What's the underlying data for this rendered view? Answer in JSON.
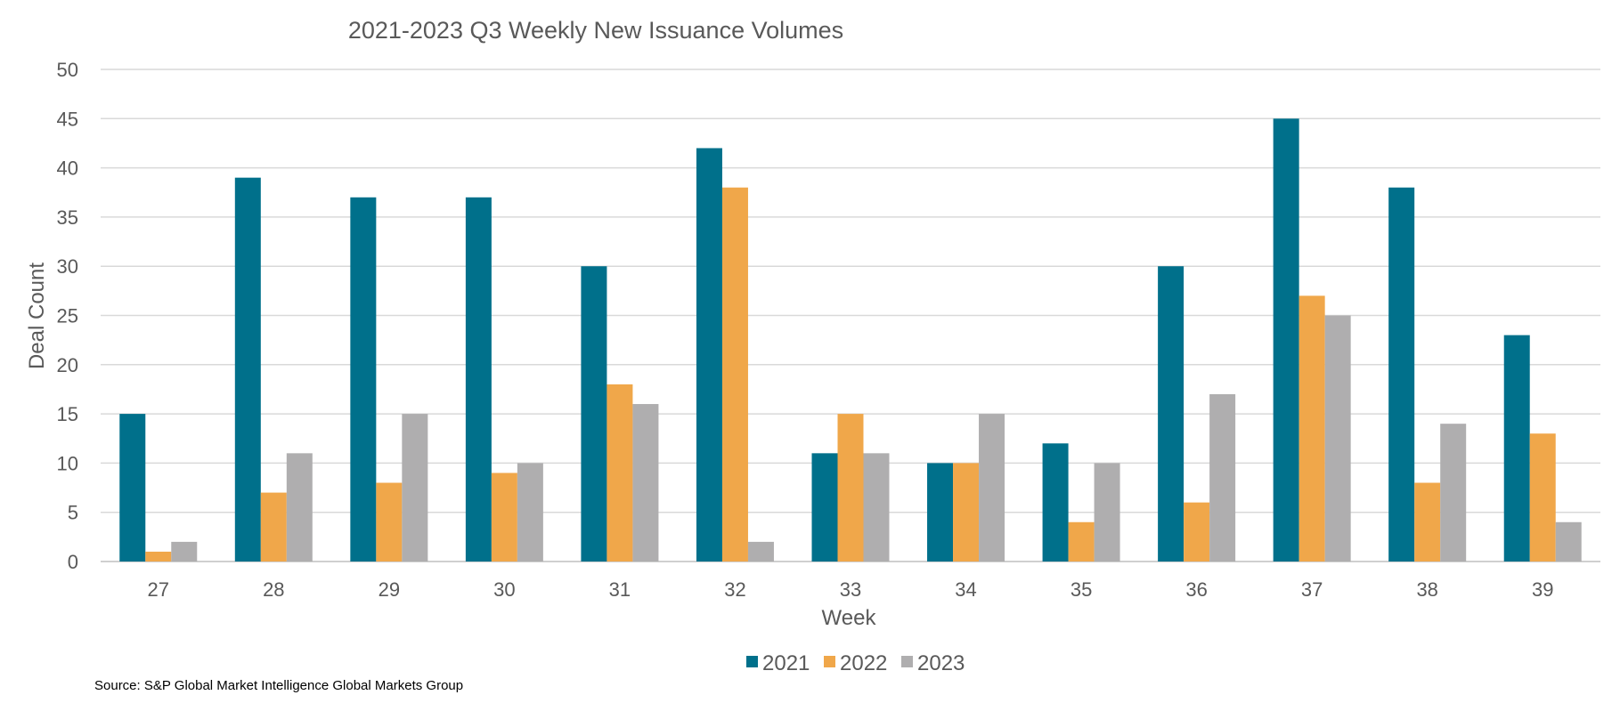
{
  "chart_data": {
    "type": "bar",
    "title": "2021-2023 Q3 Weekly New Issuance Volumes",
    "xlabel": "Week",
    "ylabel": "Deal Count",
    "ylim": [
      0,
      50
    ],
    "ytick_step": 5,
    "grid": true,
    "legend_position": "bottom",
    "categories": [
      "27",
      "28",
      "29",
      "30",
      "31",
      "32",
      "33",
      "34",
      "35",
      "36",
      "37",
      "38",
      "39"
    ],
    "series": [
      {
        "name": "2021",
        "color": "#00708B",
        "values": [
          15,
          39,
          37,
          37,
          30,
          42,
          11,
          10,
          12,
          30,
          45,
          38,
          23
        ]
      },
      {
        "name": "2022",
        "color": "#F0A74A",
        "values": [
          1,
          7,
          8,
          9,
          18,
          38,
          15,
          10,
          4,
          6,
          27,
          8,
          13
        ]
      },
      {
        "name": "2023",
        "color": "#AFAEAF",
        "values": [
          2,
          11,
          15,
          10,
          16,
          2,
          11,
          15,
          10,
          17,
          25,
          14,
          4
        ]
      }
    ],
    "source": "Source: S&P Global Market Intelligence Global Markets Group"
  }
}
